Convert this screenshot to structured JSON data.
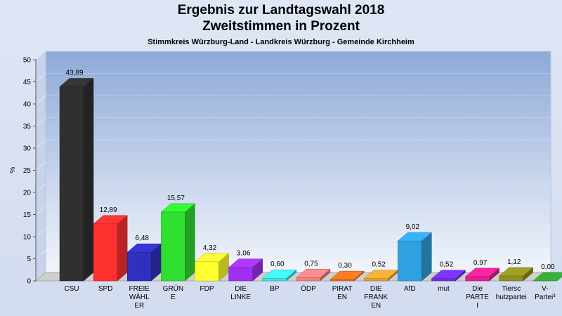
{
  "header": {
    "title_line1": "Ergebnis zur Landtagswahl 2018",
    "title_line2": "Zweitstimmen in Prozent",
    "subtitle": "Stimmkreis Würzburg-Land - Landkreis Würzburg - Gemeinde Kirchheim"
  },
  "chart_data": {
    "type": "bar",
    "title": "Ergebnis zur Landtagswahl 2018 Zweitstimmen in Prozent",
    "subtitle": "Stimmkreis Würzburg-Land - Landkreis Würzburg - Gemeinde Kirchheim",
    "ylabel": "%",
    "ylim": [
      0,
      50
    ],
    "yticks": [
      0,
      5,
      10,
      15,
      20,
      25,
      30,
      35,
      40,
      45,
      50
    ],
    "grid": true,
    "categories": [
      [
        "CSU"
      ],
      [
        "SPD"
      ],
      [
        "FREIE",
        "WÄHL",
        "ER"
      ],
      [
        "GRÜN",
        "E"
      ],
      [
        "FDP"
      ],
      [
        "DIE",
        "LINKE"
      ],
      [
        "BP"
      ],
      [
        "ÖDP"
      ],
      [
        "PIRAT",
        "EN"
      ],
      [
        "DIE",
        "FRANK",
        "EN"
      ],
      [
        "AfD"
      ],
      [
        "mut"
      ],
      [
        "Die",
        "PARTE",
        "I"
      ],
      [
        "Tiersc",
        "hutzpartei"
      ],
      [
        "V-",
        "Partei³"
      ]
    ],
    "values": [
      43.89,
      12.89,
      6.48,
      15.57,
      4.32,
      3.06,
      0.6,
      0.75,
      0.3,
      0.52,
      9.02,
      0.52,
      0.97,
      1.12,
      0.0
    ],
    "value_labels": [
      "43,89",
      "12,89",
      "6,48",
      "15,57",
      "4,32",
      "3,06",
      "0,60",
      "0,75",
      "0,30",
      "0,52",
      "9,02",
      "0,52",
      "0,97",
      "1,12",
      "0,00"
    ],
    "colors": [
      "#303030",
      "#ff3030",
      "#3030c0",
      "#30e030",
      "#ffff30",
      "#a030f0",
      "#40e0e0",
      "#f08080",
      "#e07020",
      "#e0a030",
      "#30a0e0",
      "#7030e0",
      "#e02090",
      "#909020",
      "#30a030"
    ]
  }
}
